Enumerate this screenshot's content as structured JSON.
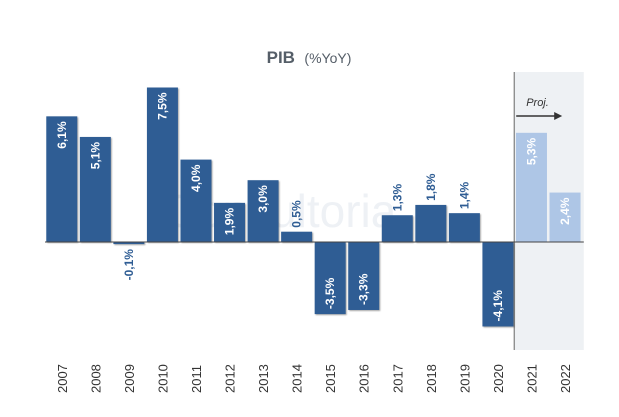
{
  "chart_data": {
    "type": "bar",
    "title": "PIB",
    "subtitle": "(%YoY)",
    "categories": [
      "2007",
      "2008",
      "2009",
      "2010",
      "2011",
      "2012",
      "2013",
      "2014",
      "2015",
      "2016",
      "2017",
      "2018",
      "2019",
      "2020",
      "2021",
      "2022"
    ],
    "values": [
      6.1,
      5.1,
      -0.1,
      7.5,
      4.0,
      1.9,
      3.0,
      0.5,
      -3.5,
      -3.3,
      1.3,
      1.8,
      1.4,
      -4.1,
      5.3,
      2.4
    ],
    "labels": [
      "6,1%",
      "5,1%",
      "-0,1%",
      "7,5%",
      "4,0%",
      "1,9%",
      "3,0%",
      "0,5%",
      "-3,5%",
      "-3,3%",
      "1,3%",
      "1,8%",
      "1,4%",
      "-4,1%",
      "5,3%",
      "2,4%"
    ],
    "projected": [
      false,
      false,
      false,
      false,
      false,
      false,
      false,
      false,
      false,
      false,
      false,
      false,
      false,
      false,
      true,
      true
    ],
    "projection_label": "Proj.",
    "watermark": "Consultoria",
    "xlabel": "",
    "ylabel": "",
    "grid": false,
    "colors": {
      "actual": "#2f5d94",
      "projected": "#aec6e6",
      "label_light": "#ffffff",
      "label_dark": "#2f5d94",
      "projection_bg": "#eef1f4",
      "axis": "#444444"
    }
  }
}
